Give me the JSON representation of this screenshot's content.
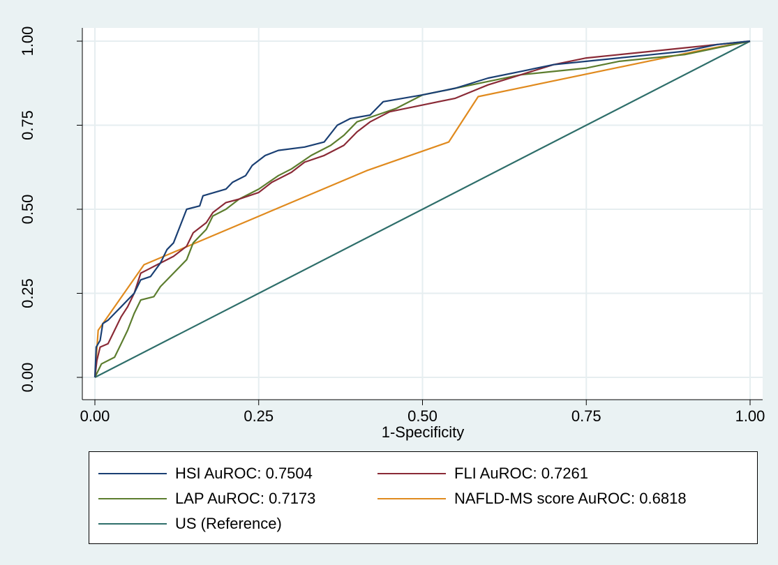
{
  "chart_data": {
    "type": "line",
    "title": "",
    "xlabel": "1-Specificity",
    "ylabel": "",
    "xlim": [
      0,
      1
    ],
    "ylim": [
      0,
      1
    ],
    "x_ticks": [
      "0.00",
      "0.25",
      "0.50",
      "0.75",
      "1.00"
    ],
    "y_ticks": [
      "0.00",
      "0.25",
      "0.50",
      "0.75",
      "1.00"
    ],
    "grid": true,
    "legend_position": "bottom",
    "series": [
      {
        "name": "HSI AuROC: 0.7504",
        "color": "#1a3f73",
        "points": [
          [
            0,
            0
          ],
          [
            0.002,
            0.09
          ],
          [
            0.008,
            0.11
          ],
          [
            0.012,
            0.16
          ],
          [
            0.02,
            0.17
          ],
          [
            0.03,
            0.19
          ],
          [
            0.04,
            0.21
          ],
          [
            0.05,
            0.23
          ],
          [
            0.06,
            0.25
          ],
          [
            0.07,
            0.29
          ],
          [
            0.085,
            0.3
          ],
          [
            0.1,
            0.34
          ],
          [
            0.11,
            0.38
          ],
          [
            0.12,
            0.4
          ],
          [
            0.13,
            0.45
          ],
          [
            0.14,
            0.5
          ],
          [
            0.16,
            0.51
          ],
          [
            0.165,
            0.54
          ],
          [
            0.2,
            0.56
          ],
          [
            0.21,
            0.58
          ],
          [
            0.23,
            0.6
          ],
          [
            0.24,
            0.63
          ],
          [
            0.26,
            0.66
          ],
          [
            0.28,
            0.675
          ],
          [
            0.32,
            0.685
          ],
          [
            0.35,
            0.7
          ],
          [
            0.37,
            0.75
          ],
          [
            0.39,
            0.77
          ],
          [
            0.42,
            0.78
          ],
          [
            0.44,
            0.82
          ],
          [
            0.5,
            0.84
          ],
          [
            0.55,
            0.86
          ],
          [
            0.6,
            0.89
          ],
          [
            0.65,
            0.91
          ],
          [
            0.7,
            0.93
          ],
          [
            0.75,
            0.94
          ],
          [
            0.8,
            0.95
          ],
          [
            0.85,
            0.96
          ],
          [
            0.9,
            0.97
          ],
          [
            0.95,
            0.99
          ],
          [
            1,
            1
          ]
        ]
      },
      {
        "name": "FLI AuROC: 0.7261",
        "color": "#8a2a36",
        "points": [
          [
            0,
            0
          ],
          [
            0.003,
            0.05
          ],
          [
            0.008,
            0.09
          ],
          [
            0.02,
            0.1
          ],
          [
            0.03,
            0.14
          ],
          [
            0.04,
            0.18
          ],
          [
            0.05,
            0.21
          ],
          [
            0.06,
            0.25
          ],
          [
            0.07,
            0.31
          ],
          [
            0.08,
            0.32
          ],
          [
            0.1,
            0.34
          ],
          [
            0.12,
            0.36
          ],
          [
            0.14,
            0.39
          ],
          [
            0.15,
            0.43
          ],
          [
            0.17,
            0.46
          ],
          [
            0.18,
            0.49
          ],
          [
            0.2,
            0.52
          ],
          [
            0.22,
            0.53
          ],
          [
            0.25,
            0.55
          ],
          [
            0.27,
            0.58
          ],
          [
            0.3,
            0.61
          ],
          [
            0.32,
            0.64
          ],
          [
            0.35,
            0.66
          ],
          [
            0.38,
            0.69
          ],
          [
            0.4,
            0.73
          ],
          [
            0.42,
            0.76
          ],
          [
            0.45,
            0.79
          ],
          [
            0.5,
            0.81
          ],
          [
            0.55,
            0.83
          ],
          [
            0.6,
            0.87
          ],
          [
            0.65,
            0.9
          ],
          [
            0.7,
            0.93
          ],
          [
            0.75,
            0.95
          ],
          [
            0.8,
            0.96
          ],
          [
            0.85,
            0.97
          ],
          [
            0.9,
            0.98
          ],
          [
            0.95,
            0.99
          ],
          [
            1,
            1
          ]
        ]
      },
      {
        "name": "LAP AuROC: 0.7173",
        "color": "#5c7d2e",
        "points": [
          [
            0,
            0
          ],
          [
            0.005,
            0.02
          ],
          [
            0.01,
            0.04
          ],
          [
            0.03,
            0.06
          ],
          [
            0.04,
            0.1
          ],
          [
            0.05,
            0.14
          ],
          [
            0.06,
            0.19
          ],
          [
            0.07,
            0.23
          ],
          [
            0.09,
            0.24
          ],
          [
            0.1,
            0.27
          ],
          [
            0.12,
            0.31
          ],
          [
            0.14,
            0.35
          ],
          [
            0.15,
            0.4
          ],
          [
            0.17,
            0.44
          ],
          [
            0.18,
            0.48
          ],
          [
            0.2,
            0.5
          ],
          [
            0.22,
            0.53
          ],
          [
            0.25,
            0.56
          ],
          [
            0.28,
            0.6
          ],
          [
            0.3,
            0.62
          ],
          [
            0.33,
            0.66
          ],
          [
            0.36,
            0.69
          ],
          [
            0.38,
            0.72
          ],
          [
            0.4,
            0.76
          ],
          [
            0.43,
            0.78
          ],
          [
            0.46,
            0.8
          ],
          [
            0.5,
            0.84
          ],
          [
            0.55,
            0.86
          ],
          [
            0.6,
            0.88
          ],
          [
            0.65,
            0.9
          ],
          [
            0.7,
            0.91
          ],
          [
            0.75,
            0.92
          ],
          [
            0.8,
            0.94
          ],
          [
            0.85,
            0.95
          ],
          [
            0.9,
            0.96
          ],
          [
            0.95,
            0.98
          ],
          [
            1,
            1
          ]
        ]
      },
      {
        "name": "NAFLD-MS score AuROC: 0.6818",
        "color": "#e08a1e",
        "points": [
          [
            0,
            0
          ],
          [
            0.005,
            0.14
          ],
          [
            0.075,
            0.335
          ],
          [
            0.415,
            0.615
          ],
          [
            0.54,
            0.7
          ],
          [
            0.585,
            0.835
          ],
          [
            0.93,
            0.975
          ],
          [
            1,
            1
          ]
        ]
      },
      {
        "name": "US (Reference)",
        "color": "#2e6e6a",
        "points": [
          [
            0,
            0
          ],
          [
            1,
            1
          ]
        ]
      }
    ]
  }
}
